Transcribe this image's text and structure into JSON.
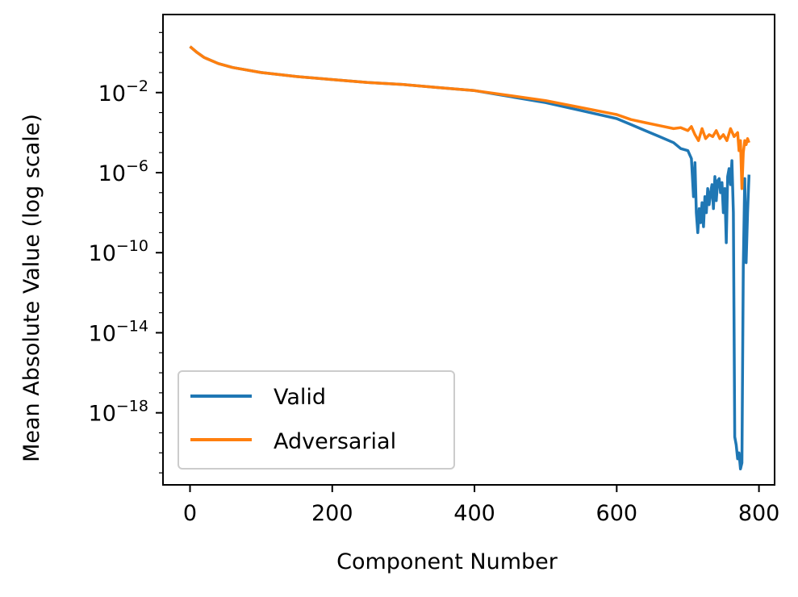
{
  "chart_data": {
    "type": "line",
    "title": "",
    "xlabel": "Component Number",
    "ylabel": "Mean Absolute Value (log scale)",
    "xlim": [
      -38,
      822
    ],
    "ylim_log10": [
      -21.6,
      1.9
    ],
    "yscale": "log",
    "grid": false,
    "legend_position": "lower-left",
    "x_ticks": [
      0,
      200,
      400,
      600,
      800
    ],
    "x_tick_labels": [
      "0",
      "200",
      "400",
      "600",
      "800"
    ],
    "y_ticks_log10": [
      -2,
      -6,
      -10,
      -14,
      -18
    ],
    "y_tick_labels": [
      {
        "base": "10",
        "exp": "−2"
      },
      {
        "base": "10",
        "exp": "−6"
      },
      {
        "base": "10",
        "exp": "−10"
      },
      {
        "base": "10",
        "exp": "−14"
      },
      {
        "base": "10",
        "exp": "−18"
      }
    ],
    "series": [
      {
        "name": "Valid",
        "color": "#1f77b4",
        "x": [
          0,
          10,
          20,
          40,
          60,
          100,
          150,
          200,
          250,
          300,
          350,
          400,
          450,
          500,
          550,
          600,
          620,
          640,
          660,
          680,
          690,
          700,
          705,
          708,
          710,
          712,
          714,
          716,
          718,
          720,
          722,
          724,
          726,
          728,
          730,
          732,
          734,
          736,
          738,
          740,
          742,
          744,
          746,
          748,
          750,
          752,
          754,
          756,
          758,
          760,
          762,
          764,
          766,
          768,
          770,
          772,
          774,
          776,
          778,
          780,
          782,
          784,
          786
        ],
        "y_log10": [
          0.3,
          0.0,
          -0.25,
          -0.55,
          -0.75,
          -1.0,
          -1.2,
          -1.35,
          -1.5,
          -1.6,
          -1.75,
          -1.9,
          -2.2,
          -2.5,
          -2.9,
          -3.3,
          -3.6,
          -3.9,
          -4.2,
          -4.5,
          -4.8,
          -4.9,
          -5.3,
          -7.2,
          -5.5,
          -8.0,
          -9.0,
          -7.8,
          -8.5,
          -7.5,
          -8.7,
          -7.2,
          -8.0,
          -6.8,
          -7.6,
          -7.0,
          -6.6,
          -7.8,
          -6.2,
          -7.4,
          -6.4,
          -6.3,
          -7.0,
          -6.5,
          -8.0,
          -6.8,
          -9.5,
          -6.2,
          -5.8,
          -6.6,
          -5.4,
          -8.0,
          -19.2,
          -19.6,
          -20.3,
          -20.0,
          -20.8,
          -20.5,
          -10.7,
          -6.3,
          -10.5,
          -8.0,
          -6.1
        ]
      },
      {
        "name": "Adversarial",
        "color": "#ff7f0e",
        "x": [
          0,
          10,
          20,
          40,
          60,
          100,
          150,
          200,
          250,
          300,
          350,
          400,
          450,
          500,
          550,
          600,
          620,
          640,
          660,
          680,
          690,
          700,
          705,
          710,
          715,
          720,
          725,
          730,
          735,
          740,
          745,
          750,
          755,
          760,
          765,
          770,
          772,
          774,
          776,
          778,
          780,
          782,
          784,
          786
        ],
        "y_log10": [
          0.3,
          0.0,
          -0.25,
          -0.55,
          -0.75,
          -1.0,
          -1.2,
          -1.35,
          -1.5,
          -1.6,
          -1.75,
          -1.9,
          -2.15,
          -2.4,
          -2.75,
          -3.1,
          -3.35,
          -3.5,
          -3.65,
          -3.8,
          -3.75,
          -3.9,
          -3.7,
          -4.1,
          -4.4,
          -3.8,
          -4.3,
          -4.1,
          -4.2,
          -3.9,
          -4.3,
          -4.1,
          -4.4,
          -3.8,
          -4.2,
          -4.0,
          -4.9,
          -4.4,
          -6.8,
          -5.0,
          -4.4,
          -4.6,
          -4.3,
          -4.5
        ]
      }
    ]
  }
}
